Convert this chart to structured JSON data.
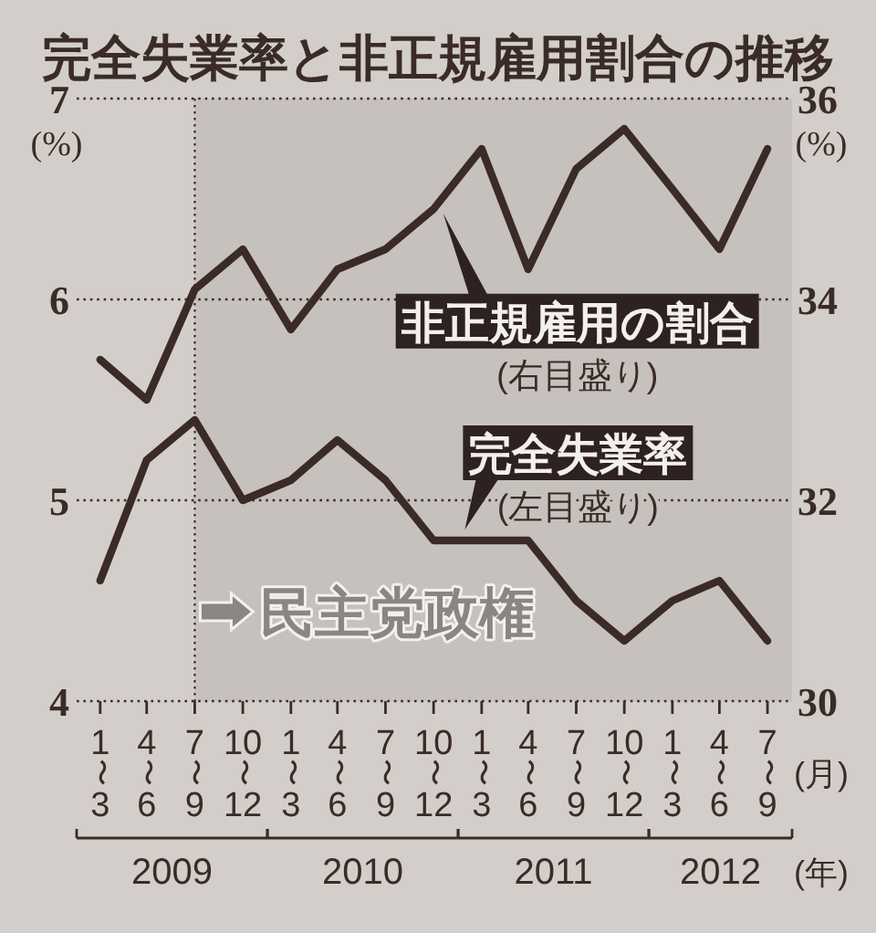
{
  "chart_data": {
    "type": "line",
    "title": "完全失業率と非正規雇用割合の推移",
    "ylabel": "(%)",
    "y2label": "(%)",
    "xlabel": "(月)",
    "x": [
      "2009-02-15",
      "2009-05-15",
      "2009-08-15",
      "2009-11-15",
      "2010-02-15",
      "2010-05-15",
      "2010-08-15",
      "2010-11-15",
      "2011-02-15",
      "2011-05-15",
      "2011-08-15",
      "2011-11-15",
      "2012-02-15",
      "2012-05-15",
      "2012-08-15"
    ],
    "xlim": [
      "2009-01",
      "2012-10"
    ],
    "xticks": [
      {
        "value": "2009-02-15",
        "label": "1〜3"
      },
      {
        "value": "2009-05-15",
        "label": "4〜6"
      },
      {
        "value": "2009-08-15",
        "label": "7〜9"
      },
      {
        "value": "2009-11-15",
        "label": "10〜12"
      },
      {
        "value": "2010-02-15",
        "label": "1〜3"
      },
      {
        "value": "2010-05-15",
        "label": "4〜6"
      },
      {
        "value": "2010-08-15",
        "label": "7〜9"
      },
      {
        "value": "2010-11-15",
        "label": "10〜12"
      },
      {
        "value": "2011-02-15",
        "label": "1〜3"
      },
      {
        "value": "2011-05-15",
        "label": "4〜6"
      },
      {
        "value": "2011-08-15",
        "label": "7〜9"
      },
      {
        "value": "2011-11-15",
        "label": "10〜12"
      },
      {
        "value": "2012-02-15",
        "label": "1〜3"
      },
      {
        "value": "2012-05-15",
        "label": "4〜6"
      },
      {
        "value": "2012-08-15",
        "label": "7〜9"
      }
    ],
    "ylim": [
      4,
      7
    ],
    "yticks": [
      4,
      5,
      6,
      7
    ],
    "y2lim": [
      30,
      36
    ],
    "y2ticks": [
      30,
      32,
      34,
      36
    ],
    "series": [
      {
        "name": "完全失業率",
        "color": "#3a2a28",
        "values": [
          4.6,
          5.2,
          5.4,
          5.0,
          5.1,
          5.3,
          5.1,
          4.8,
          4.8,
          4.8,
          4.5,
          4.3,
          4.5,
          4.6,
          4.3
        ]
      },
      {
        "name": "非正規雇用の割合",
        "color": "#3a2a28",
        "axis": "y2",
        "values": [
          33.4,
          33.0,
          34.1,
          34.5,
          33.7,
          34.3,
          34.5,
          34.9,
          35.5,
          34.3,
          35.3,
          35.7,
          35.1,
          34.5,
          35.5
        ]
      }
    ],
    "bands": [
      {
        "axis": "x",
        "from": "2009-08-15",
        "to": "2012-10",
        "label": "民主党政権",
        "color": "#c6c1bc"
      }
    ],
    "ref_lines": [
      {
        "axis": "x",
        "value": "2009-08-15",
        "line_style": "dotted",
        "color": "#3a2a28"
      }
    ],
    "annotations": [
      "(左目盛り)",
      "(右目盛り)",
      "2009",
      "2010",
      "2011",
      "2012",
      "(年)"
    ],
    "grid": "y",
    "legend": false,
    "line_style": "solid",
    "marker": "none"
  }
}
